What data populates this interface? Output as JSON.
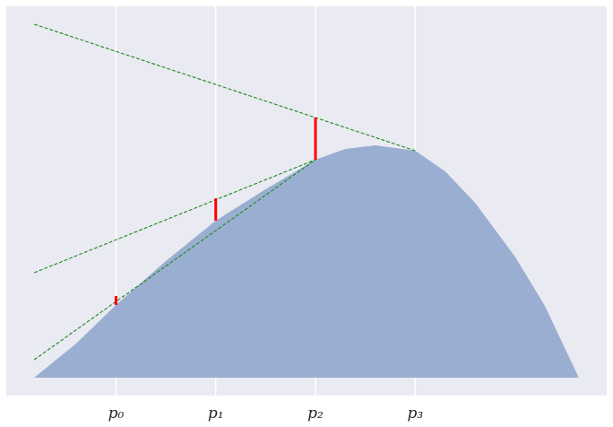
{
  "chart_data": {
    "type": "area",
    "x": [
      0.18,
      0.6,
      1,
      1.5,
      2,
      2.5,
      3,
      3.3,
      3.6,
      4,
      4.3,
      4.6,
      5,
      5.3,
      5.64
    ],
    "values": [
      0,
      0.38,
      0.81,
      1.3,
      1.75,
      2.1,
      2.43,
      2.55,
      2.59,
      2.53,
      2.3,
      1.95,
      1.35,
      0.8,
      0
    ],
    "color": "#9aaed1",
    "xlim": [
      -0.1,
      5.92
    ],
    "ylim": [
      -0.2,
      4.14
    ],
    "xticks": [
      {
        "value": 1,
        "label": "p₀"
      },
      {
        "value": 2,
        "label": "p₁"
      },
      {
        "value": 3,
        "label": "p₂"
      },
      {
        "value": 4,
        "label": "p₃"
      }
    ],
    "grid": true,
    "lines": [
      {
        "x": [
          0.18,
          3
        ],
        "values": [
          0.2,
          2.43
        ],
        "color": "#1a8a1a",
        "style": "dashed"
      },
      {
        "x": [
          0.18,
          3
        ],
        "values": [
          1.17,
          2.43
        ],
        "color": "#1a8a1a",
        "style": "dashed"
      },
      {
        "x": [
          0.18,
          4
        ],
        "values": [
          3.94,
          2.53
        ],
        "color": "#1a8a1a",
        "style": "dashed"
      }
    ],
    "segments": [
      {
        "x": 1,
        "values": [
          0.81,
          0.91
        ],
        "color": "#ff0000"
      },
      {
        "x": 2,
        "values": [
          1.75,
          2.0
        ],
        "color": "#ff0000"
      },
      {
        "x": 3,
        "values": [
          2.43,
          2.9
        ],
        "color": "#ff0000"
      }
    ]
  }
}
